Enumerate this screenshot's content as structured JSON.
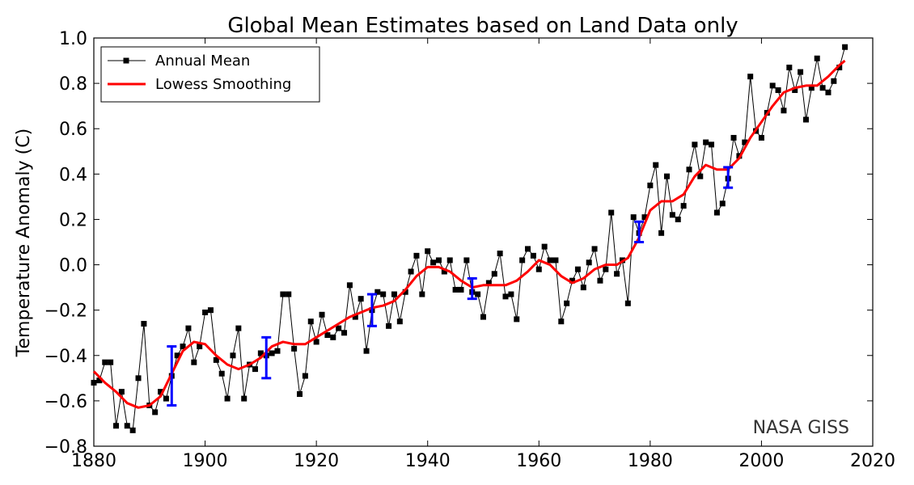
{
  "chart_data": {
    "type": "line",
    "title": "Global Mean Estimates based on Land Data only",
    "ylabel": "Temperature Anomaly (C)",
    "xlabel": "",
    "xlim": [
      1880,
      2020
    ],
    "ylim": [
      -0.8,
      1.0
    ],
    "xticks": [
      1880,
      1900,
      1920,
      1940,
      1960,
      1980,
      2000,
      2020
    ],
    "yticks": [
      -0.8,
      -0.6,
      -0.4,
      -0.2,
      0.0,
      0.2,
      0.4,
      0.6,
      0.8,
      1.0
    ],
    "xtick_labels": [
      "1880",
      "1900",
      "1920",
      "1940",
      "1960",
      "1980",
      "2000",
      "2020"
    ],
    "ytick_labels": [
      "−0.8",
      "−0.6",
      "−0.4",
      "−0.2",
      "0.0",
      "0.2",
      "0.4",
      "0.6",
      "0.8",
      "1.0"
    ],
    "grid": false,
    "legend_placement": "top-left",
    "annotation": "NASA GISS",
    "series": [
      {
        "name": "Annual Mean",
        "color": "#000000",
        "marker": "square",
        "x": [
          1880,
          1881,
          1882,
          1883,
          1884,
          1885,
          1886,
          1887,
          1888,
          1889,
          1890,
          1891,
          1892,
          1893,
          1894,
          1895,
          1896,
          1897,
          1898,
          1899,
          1900,
          1901,
          1902,
          1903,
          1904,
          1905,
          1906,
          1907,
          1908,
          1909,
          1910,
          1911,
          1912,
          1913,
          1914,
          1915,
          1916,
          1917,
          1918,
          1919,
          1920,
          1921,
          1922,
          1923,
          1924,
          1925,
          1926,
          1927,
          1928,
          1929,
          1930,
          1931,
          1932,
          1933,
          1934,
          1935,
          1936,
          1937,
          1938,
          1939,
          1940,
          1941,
          1942,
          1943,
          1944,
          1945,
          1946,
          1947,
          1948,
          1949,
          1950,
          1951,
          1952,
          1953,
          1954,
          1955,
          1956,
          1957,
          1958,
          1959,
          1960,
          1961,
          1962,
          1963,
          1964,
          1965,
          1966,
          1967,
          1968,
          1969,
          1970,
          1971,
          1972,
          1973,
          1974,
          1975,
          1976,
          1977,
          1978,
          1979,
          1980,
          1981,
          1982,
          1983,
          1984,
          1985,
          1986,
          1987,
          1988,
          1989,
          1990,
          1991,
          1992,
          1993,
          1994,
          1995,
          1996,
          1997,
          1998,
          1999,
          2000,
          2001,
          2002,
          2003,
          2004,
          2005,
          2006,
          2007,
          2008,
          2009,
          2010,
          2011,
          2012,
          2013,
          2014,
          2015
        ],
        "y": [
          -0.52,
          -0.51,
          -0.43,
          -0.43,
          -0.71,
          -0.56,
          -0.71,
          -0.73,
          -0.5,
          -0.26,
          -0.62,
          -0.65,
          -0.56,
          -0.59,
          -0.49,
          -0.4,
          -0.36,
          -0.28,
          -0.43,
          -0.36,
          -0.21,
          -0.2,
          -0.42,
          -0.48,
          -0.59,
          -0.4,
          -0.28,
          -0.59,
          -0.44,
          -0.46,
          -0.39,
          -0.4,
          -0.39,
          -0.38,
          -0.13,
          -0.13,
          -0.37,
          -0.57,
          -0.49,
          -0.25,
          -0.34,
          -0.22,
          -0.31,
          -0.32,
          -0.28,
          -0.3,
          -0.09,
          -0.23,
          -0.15,
          -0.38,
          -0.2,
          -0.12,
          -0.13,
          -0.27,
          -0.13,
          -0.25,
          -0.12,
          -0.03,
          0.04,
          -0.13,
          0.06,
          0.01,
          0.02,
          -0.03,
          0.02,
          -0.11,
          -0.11,
          0.02,
          -0.12,
          -0.13,
          -0.23,
          -0.08,
          -0.04,
          0.05,
          -0.14,
          -0.13,
          -0.24,
          0.02,
          0.07,
          0.04,
          -0.02,
          0.08,
          0.02,
          0.02,
          -0.25,
          -0.17,
          -0.07,
          -0.02,
          -0.1,
          0.01,
          0.07,
          -0.07,
          -0.02,
          0.23,
          -0.04,
          0.02,
          -0.17,
          0.21,
          0.14,
          0.21,
          0.35,
          0.44,
          0.14,
          0.39,
          0.22,
          0.2,
          0.26,
          0.42,
          0.53,
          0.39,
          0.54,
          0.53,
          0.23,
          0.27,
          0.38,
          0.56,
          0.48,
          0.54,
          0.83,
          0.59,
          0.56,
          0.67,
          0.79,
          0.77,
          0.68,
          0.87,
          0.77,
          0.85,
          0.64,
          0.78,
          0.91,
          0.78,
          0.76,
          0.81,
          0.87,
          0.96
        ]
      },
      {
        "name": "Lowess Smoothing",
        "color": "#ff0000",
        "x": [
          1880,
          1882,
          1884,
          1886,
          1888,
          1890,
          1892,
          1894,
          1896,
          1898,
          1900,
          1902,
          1904,
          1906,
          1908,
          1910,
          1912,
          1914,
          1916,
          1918,
          1920,
          1922,
          1924,
          1926,
          1928,
          1930,
          1932,
          1934,
          1936,
          1938,
          1940,
          1942,
          1944,
          1946,
          1948,
          1950,
          1952,
          1954,
          1956,
          1958,
          1960,
          1962,
          1964,
          1966,
          1968,
          1970,
          1972,
          1974,
          1976,
          1978,
          1980,
          1982,
          1984,
          1986,
          1988,
          1990,
          1992,
          1994,
          1996,
          1998,
          2000,
          2002,
          2004,
          2006,
          2008,
          2010,
          2012,
          2014,
          2015
        ],
        "y": [
          -0.47,
          -0.52,
          -0.56,
          -0.61,
          -0.63,
          -0.62,
          -0.58,
          -0.48,
          -0.38,
          -0.34,
          -0.35,
          -0.4,
          -0.44,
          -0.46,
          -0.44,
          -0.41,
          -0.36,
          -0.34,
          -0.35,
          -0.35,
          -0.32,
          -0.29,
          -0.26,
          -0.23,
          -0.21,
          -0.19,
          -0.18,
          -0.16,
          -0.11,
          -0.05,
          -0.01,
          -0.01,
          -0.03,
          -0.07,
          -0.1,
          -0.09,
          -0.09,
          -0.09,
          -0.07,
          -0.03,
          0.02,
          0.0,
          -0.05,
          -0.08,
          -0.06,
          -0.02,
          0.0,
          0.0,
          0.03,
          0.12,
          0.24,
          0.28,
          0.28,
          0.31,
          0.39,
          0.44,
          0.42,
          0.42,
          0.47,
          0.56,
          0.63,
          0.7,
          0.76,
          0.78,
          0.79,
          0.79,
          0.83,
          0.88,
          0.9
        ]
      }
    ],
    "error_bars": {
      "color": "#0000ff",
      "bars": [
        {
          "x": 1894,
          "low": -0.62,
          "high": -0.36
        },
        {
          "x": 1911,
          "low": -0.5,
          "high": -0.32
        },
        {
          "x": 1930,
          "low": -0.27,
          "high": -0.13
        },
        {
          "x": 1948,
          "low": -0.15,
          "high": -0.06
        },
        {
          "x": 1978,
          "low": 0.1,
          "high": 0.19
        },
        {
          "x": 1994,
          "low": 0.34,
          "high": 0.43
        }
      ]
    }
  }
}
